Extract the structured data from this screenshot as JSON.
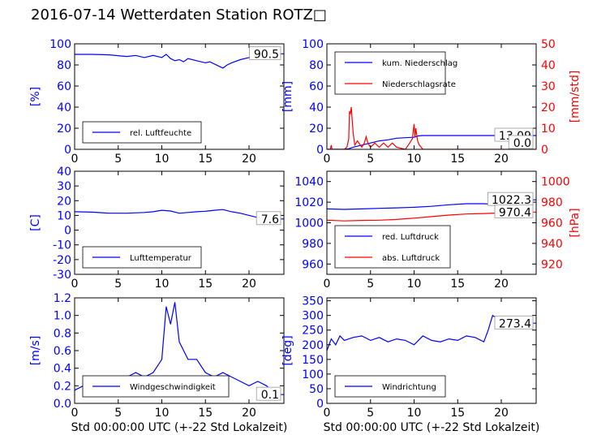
{
  "title": "2016-07-14 Wetterdaten Station ROTZ□",
  "colors": {
    "primary": "#0000ff",
    "secondary": "#ff0000",
    "axis": "#000000"
  },
  "chart_data": [
    {
      "id": "humidity",
      "type": "line",
      "ylabel": "[%]",
      "xlim": [
        0,
        24
      ],
      "ylim": [
        0,
        100
      ],
      "xticks": [
        0,
        5,
        10,
        15,
        20
      ],
      "yticks": [
        0,
        20,
        40,
        60,
        80,
        100
      ],
      "legend": {
        "position": "lower-left",
        "entries": [
          "rel. Luftfeuchte"
        ]
      },
      "annotations": [
        {
          "text": "90.5",
          "y": 90.5
        }
      ],
      "series": [
        {
          "name": "rel. Luftfeuchte",
          "color": "#0000ff",
          "axis": "left",
          "x": [
            0,
            2,
            4,
            6,
            7,
            8,
            9,
            9.5,
            10,
            10.5,
            11,
            11.5,
            12,
            12.5,
            13,
            14,
            15,
            15.5,
            16,
            16.5,
            17,
            17.5,
            18,
            19,
            20,
            21,
            22,
            23,
            24
          ],
          "y": [
            90,
            90,
            89.5,
            88,
            89,
            87,
            89,
            88,
            87,
            90,
            86,
            84,
            85,
            83,
            86,
            84,
            82,
            83,
            81,
            79,
            77,
            80,
            82,
            85,
            87,
            89,
            90,
            90.5,
            90.5
          ]
        }
      ]
    },
    {
      "id": "precipitation",
      "type": "line",
      "ylabel": "[mm]",
      "ylabel_right": "[mm/std]",
      "xlim": [
        0,
        24
      ],
      "ylim": [
        0,
        100
      ],
      "ylim_right": [
        0,
        50
      ],
      "xticks": [
        0,
        5,
        10,
        15,
        20
      ],
      "yticks": [
        0,
        20,
        40,
        60,
        80,
        100
      ],
      "yticks_right": [
        0,
        10,
        20,
        30,
        40,
        50
      ],
      "legend": {
        "position": "upper-left",
        "entries": [
          "kum. Niederschlag",
          "Niederschlagsrate"
        ]
      },
      "annotations": [
        {
          "text": "13.09",
          "y": 13.09
        },
        {
          "text": "0.0",
          "y": 0.0
        }
      ],
      "series": [
        {
          "name": "kum. Niederschlag",
          "color": "#0000ff",
          "axis": "left",
          "x": [
            0,
            2,
            2.5,
            3,
            4,
            5,
            6,
            7,
            8,
            9,
            10,
            10.5,
            11,
            24
          ],
          "y": [
            0,
            0,
            0.5,
            2,
            4,
            6,
            8,
            9,
            10.5,
            11,
            11.5,
            12.8,
            13.09,
            13.09
          ]
        },
        {
          "name": "Niederschlagsrate",
          "color": "#ff0000",
          "axis": "right",
          "x": [
            0,
            0.4,
            0.5,
            0.6,
            1,
            2,
            2.3,
            2.5,
            2.6,
            2.7,
            2.8,
            2.9,
            3,
            3.2,
            3.5,
            4,
            4.3,
            4.5,
            4.7,
            5,
            5.5,
            6,
            6.5,
            7,
            7.5,
            8,
            9,
            9.5,
            9.8,
            10,
            10.1,
            10.2,
            10.4,
            10.6,
            11,
            12,
            24
          ],
          "y": [
            0,
            0,
            2,
            0,
            0,
            0,
            1,
            5,
            18,
            17,
            20,
            14,
            8,
            2,
            4,
            1,
            3,
            6,
            3,
            1,
            3,
            1,
            3,
            1,
            3,
            1,
            0,
            3,
            5,
            12,
            6,
            10,
            4,
            2,
            0,
            0,
            0
          ]
        }
      ]
    },
    {
      "id": "temperature",
      "type": "line",
      "ylabel": "[C]",
      "xlim": [
        0,
        24
      ],
      "ylim": [
        -30,
        40
      ],
      "xticks": [
        0,
        5,
        10,
        15,
        20
      ],
      "yticks": [
        -30,
        -20,
        -10,
        0,
        10,
        20,
        30,
        40
      ],
      "legend": {
        "position": "lower-left",
        "entries": [
          "Lufttemperatur"
        ]
      },
      "annotations": [
        {
          "text": "7.6",
          "y": 7.6
        }
      ],
      "series": [
        {
          "name": "Lufttemperatur",
          "color": "#0000ff",
          "axis": "left",
          "x": [
            0,
            2,
            4,
            6,
            8,
            9,
            10,
            11,
            12,
            13,
            14,
            15,
            16,
            17,
            18,
            19,
            20,
            21,
            22,
            23,
            24
          ],
          "y": [
            12.5,
            12.2,
            11.5,
            11.5,
            12,
            12.5,
            13.5,
            13,
            11.5,
            12,
            12.5,
            12.8,
            13.5,
            14,
            12.5,
            11.5,
            10,
            8.5,
            7.5,
            7.6,
            7.6
          ]
        }
      ]
    },
    {
      "id": "pressure",
      "type": "line",
      "ylabel_right": "[hPa]",
      "xlim": [
        0,
        24
      ],
      "ylim": [
        950,
        1050
      ],
      "ylim_right": [
        910,
        1010
      ],
      "xticks": [
        0,
        5,
        10,
        15,
        20
      ],
      "yticks": [
        960,
        980,
        1000,
        1020,
        1040
      ],
      "yticks_right": [
        920,
        940,
        960,
        980,
        1000
      ],
      "legend": {
        "position": "lower-left",
        "entries": [
          "red. Luftdruck",
          "abs. Luftdruck"
        ]
      },
      "annotations": [
        {
          "text": "1022.3",
          "y": 1022.3
        },
        {
          "text": "970.4",
          "y": 970.4
        }
      ],
      "series": [
        {
          "name": "red. Luftdruck",
          "color": "#0000ff",
          "axis": "left",
          "x": [
            0,
            2,
            4,
            6,
            8,
            10,
            12,
            14,
            16,
            18,
            19,
            20,
            22,
            24
          ],
          "y": [
            1013.5,
            1013,
            1013.5,
            1014,
            1014.5,
            1015,
            1016,
            1017.5,
            1018.5,
            1018.5,
            1018,
            1019.5,
            1021.5,
            1022.3
          ]
        },
        {
          "name": "abs. Luftdruck",
          "color": "#ff0000",
          "axis": "right",
          "x": [
            0,
            2,
            4,
            6,
            8,
            10,
            12,
            14,
            16,
            18,
            20,
            22,
            24
          ],
          "y": [
            962.5,
            961.8,
            962.3,
            962.5,
            963.2,
            964.5,
            966,
            967.5,
            968.5,
            969,
            969.5,
            970,
            970.4
          ]
        }
      ]
    },
    {
      "id": "wind-speed",
      "type": "line",
      "ylabel": "[m/s]",
      "xlabel": "Std 00:00:00 UTC (+-22 Std Lokalzeit)",
      "xlim": [
        0,
        24
      ],
      "ylim": [
        0,
        1.2
      ],
      "xticks": [
        0,
        5,
        10,
        15,
        20
      ],
      "yticks": [
        0.0,
        0.2,
        0.4,
        0.6,
        0.8,
        1.0,
        1.2
      ],
      "legend": {
        "position": "lower-center",
        "entries": [
          "Windgeschwindigkeit"
        ]
      },
      "annotations": [
        {
          "text": "0.1",
          "y": 0.1
        }
      ],
      "series": [
        {
          "name": "Windgeschwindigkeit",
          "color": "#0000ff",
          "axis": "left",
          "x": [
            0,
            1,
            2,
            3,
            4,
            5,
            6,
            7,
            8,
            9,
            10,
            10.5,
            11,
            11.5,
            12,
            12.5,
            13,
            14,
            15,
            16,
            17,
            18,
            19,
            20,
            21,
            22,
            23,
            24
          ],
          "y": [
            0.15,
            0.2,
            0.25,
            0.2,
            0.3,
            0.25,
            0.3,
            0.35,
            0.3,
            0.35,
            0.5,
            1.1,
            0.9,
            1.15,
            0.7,
            0.6,
            0.5,
            0.5,
            0.35,
            0.3,
            0.35,
            0.3,
            0.25,
            0.2,
            0.25,
            0.2,
            0.1,
            0.1
          ]
        }
      ]
    },
    {
      "id": "wind-direction",
      "type": "line",
      "ylabel": "[deg]",
      "xlabel": "Std 00:00:00 UTC (+-22 Std Lokalzeit)",
      "xlim": [
        0,
        24
      ],
      "ylim": [
        0,
        360
      ],
      "xticks": [
        0,
        5,
        10,
        15,
        20
      ],
      "yticks": [
        0,
        50,
        100,
        150,
        200,
        250,
        300,
        350
      ],
      "legend": {
        "position": "lower-left",
        "entries": [
          "Windrichtung"
        ]
      },
      "annotations": [
        {
          "text": "273.4",
          "y": 273.4
        }
      ],
      "series": [
        {
          "name": "Windrichtung",
          "color": "#0000ff",
          "axis": "left",
          "x": [
            0,
            0.5,
            1,
            1.5,
            2,
            3,
            4,
            5,
            6,
            7,
            8,
            9,
            10,
            11,
            12,
            13,
            14,
            15,
            16,
            17,
            18,
            18.5,
            19,
            20,
            21,
            22,
            23,
            24
          ],
          "y": [
            180,
            220,
            200,
            230,
            215,
            225,
            230,
            215,
            225,
            210,
            220,
            215,
            200,
            230,
            215,
            210,
            220,
            215,
            230,
            225,
            210,
            250,
            300,
            280,
            290,
            285,
            275,
            273.4
          ]
        }
      ]
    }
  ]
}
